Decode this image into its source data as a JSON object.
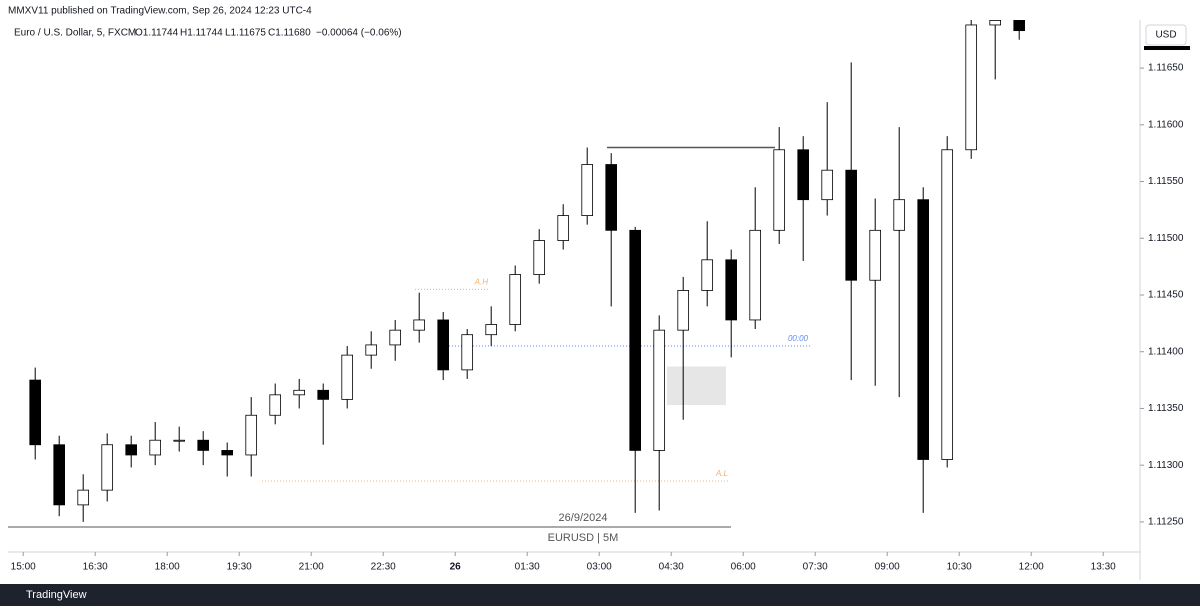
{
  "header": "MMXV11 published on TradingView.com, Sep 26, 2024 12:23 UTC-4",
  "footer": "TradingView",
  "chart_data": {
    "type": "candlestick",
    "legend": {
      "symbol": "Euro / U.S. Dollar, 5, FXCM",
      "open": "O1.11744",
      "high": "H1.11744",
      "low": "L1.11675",
      "close": "C1.11680",
      "change": "−0.00064 (−0.06%)"
    },
    "currency": "USD",
    "x": [
      0,
      30,
      60,
      90,
      120,
      150,
      180,
      210,
      240,
      270,
      300,
      330,
      360,
      390,
      420,
      450,
      480,
      510,
      540,
      570,
      600,
      630,
      660,
      690,
      720,
      750,
      780,
      810,
      840,
      870,
      900,
      930,
      960,
      990,
      1020,
      1050,
      1080,
      1110,
      1140,
      1170,
      1200,
      1230
    ],
    "open": [
      1.11375,
      1.11318,
      1.11265,
      1.11278,
      1.11318,
      1.11309,
      1.11322,
      1.11322,
      1.11313,
      1.11309,
      1.11344,
      1.11362,
      1.11366,
      1.11358,
      1.11397,
      1.11406,
      1.11419,
      1.11428,
      1.11384,
      1.11415,
      1.11424,
      1.11468,
      1.11498,
      1.1152,
      1.11565,
      1.11507,
      1.11313,
      1.11419,
      1.11454,
      1.11481,
      1.11428,
      1.11507,
      1.11578,
      1.11534,
      1.1156,
      1.11463,
      1.11507,
      1.11534,
      1.11305,
      1.11578,
      1.11688,
      1.11692
    ],
    "high": [
      1.11386,
      1.11326,
      1.11292,
      1.11328,
      1.11326,
      1.11338,
      1.11334,
      1.1133,
      1.1132,
      1.1136,
      1.11372,
      1.11376,
      1.11372,
      1.11405,
      1.11418,
      1.11428,
      1.11452,
      1.11435,
      1.1142,
      1.1144,
      1.11476,
      1.11508,
      1.1153,
      1.1158,
      1.11575,
      1.1151,
      1.11432,
      1.11466,
      1.11515,
      1.1149,
      1.11545,
      1.11598,
      1.1159,
      1.1162,
      1.11655,
      1.11535,
      1.11598,
      1.11545,
      1.1159,
      1.11705,
      1.11705,
      1.11705
    ],
    "low": [
      1.11305,
      1.11255,
      1.1125,
      1.11268,
      1.11298,
      1.113,
      1.11312,
      1.113,
      1.1129,
      1.1129,
      1.11336,
      1.1135,
      1.11318,
      1.1135,
      1.11385,
      1.11392,
      1.11408,
      1.11375,
      1.11376,
      1.11405,
      1.11418,
      1.1146,
      1.1149,
      1.11512,
      1.1144,
      1.11258,
      1.1126,
      1.1134,
      1.1144,
      1.11395,
      1.1142,
      1.11495,
      1.1148,
      1.1152,
      1.11375,
      1.1137,
      1.1136,
      1.11258,
      1.11298,
      1.1157,
      1.1164,
      1.11675
    ],
    "close": [
      1.11318,
      1.11265,
      1.11278,
      1.11318,
      1.11309,
      1.11322,
      1.11322,
      1.11313,
      1.11309,
      1.11344,
      1.11362,
      1.11366,
      1.11358,
      1.11397,
      1.11406,
      1.11419,
      1.11428,
      1.11384,
      1.11415,
      1.11424,
      1.11468,
      1.11498,
      1.1152,
      1.11565,
      1.11507,
      1.11313,
      1.11419,
      1.11454,
      1.11481,
      1.11428,
      1.11507,
      1.11578,
      1.11534,
      1.1156,
      1.11463,
      1.11507,
      1.11534,
      1.11305,
      1.11578,
      1.11688,
      1.11692,
      1.11683
    ],
    "up_color": "#ffffff",
    "down_color": "#000000",
    "outline_color": "#000000",
    "xlim": [
      -19,
      1396
    ],
    "xticks": [
      {
        "value": 0,
        "label": "15:00"
      },
      {
        "value": 90,
        "label": "16:30"
      },
      {
        "value": 180,
        "label": "18:00"
      },
      {
        "value": 270,
        "label": "19:30"
      },
      {
        "value": 360,
        "label": "21:00"
      },
      {
        "value": 450,
        "label": "22:30"
      },
      {
        "value": 540,
        "label": "26"
      },
      {
        "value": 630,
        "label": "01:30"
      },
      {
        "value": 720,
        "label": "03:00"
      },
      {
        "value": 810,
        "label": "04:30"
      },
      {
        "value": 900,
        "label": "06:00"
      },
      {
        "value": 990,
        "label": "07:30"
      },
      {
        "value": 1080,
        "label": "09:00"
      },
      {
        "value": 1170,
        "label": "10:30"
      },
      {
        "value": 1260,
        "label": "12:00"
      },
      {
        "value": 1350,
        "label": "13:30"
      }
    ],
    "ylim": [
      1.11227,
      1.1171
    ],
    "yticks": [
      {
        "value": 1.1125,
        "label": "1.11250"
      },
      {
        "value": 1.113,
        "label": "1.11300"
      },
      {
        "value": 1.1135,
        "label": "1.11350"
      },
      {
        "value": 1.114,
        "label": "1.11400"
      },
      {
        "value": 1.1145,
        "label": "1.11450"
      },
      {
        "value": 1.115,
        "label": "1.11500"
      },
      {
        "value": 1.1155,
        "label": "1.11550"
      },
      {
        "value": 1.116,
        "label": "1.11600"
      },
      {
        "value": 1.1165,
        "label": "1.11650"
      }
    ],
    "levels": [
      {
        "label": "A.H",
        "value": 1.11455,
        "color": "#f0b070"
      },
      {
        "label": "A.L",
        "value": 1.11286,
        "color": "#f0b070"
      },
      {
        "label": "00:00",
        "value": 1.11405,
        "color": "#5b8def"
      }
    ],
    "swing_high": 1.1158,
    "zone": [
      1.11353,
      1.11387
    ],
    "session_label": "26/9/2024",
    "watermark": "EURUSD | 5M"
  }
}
